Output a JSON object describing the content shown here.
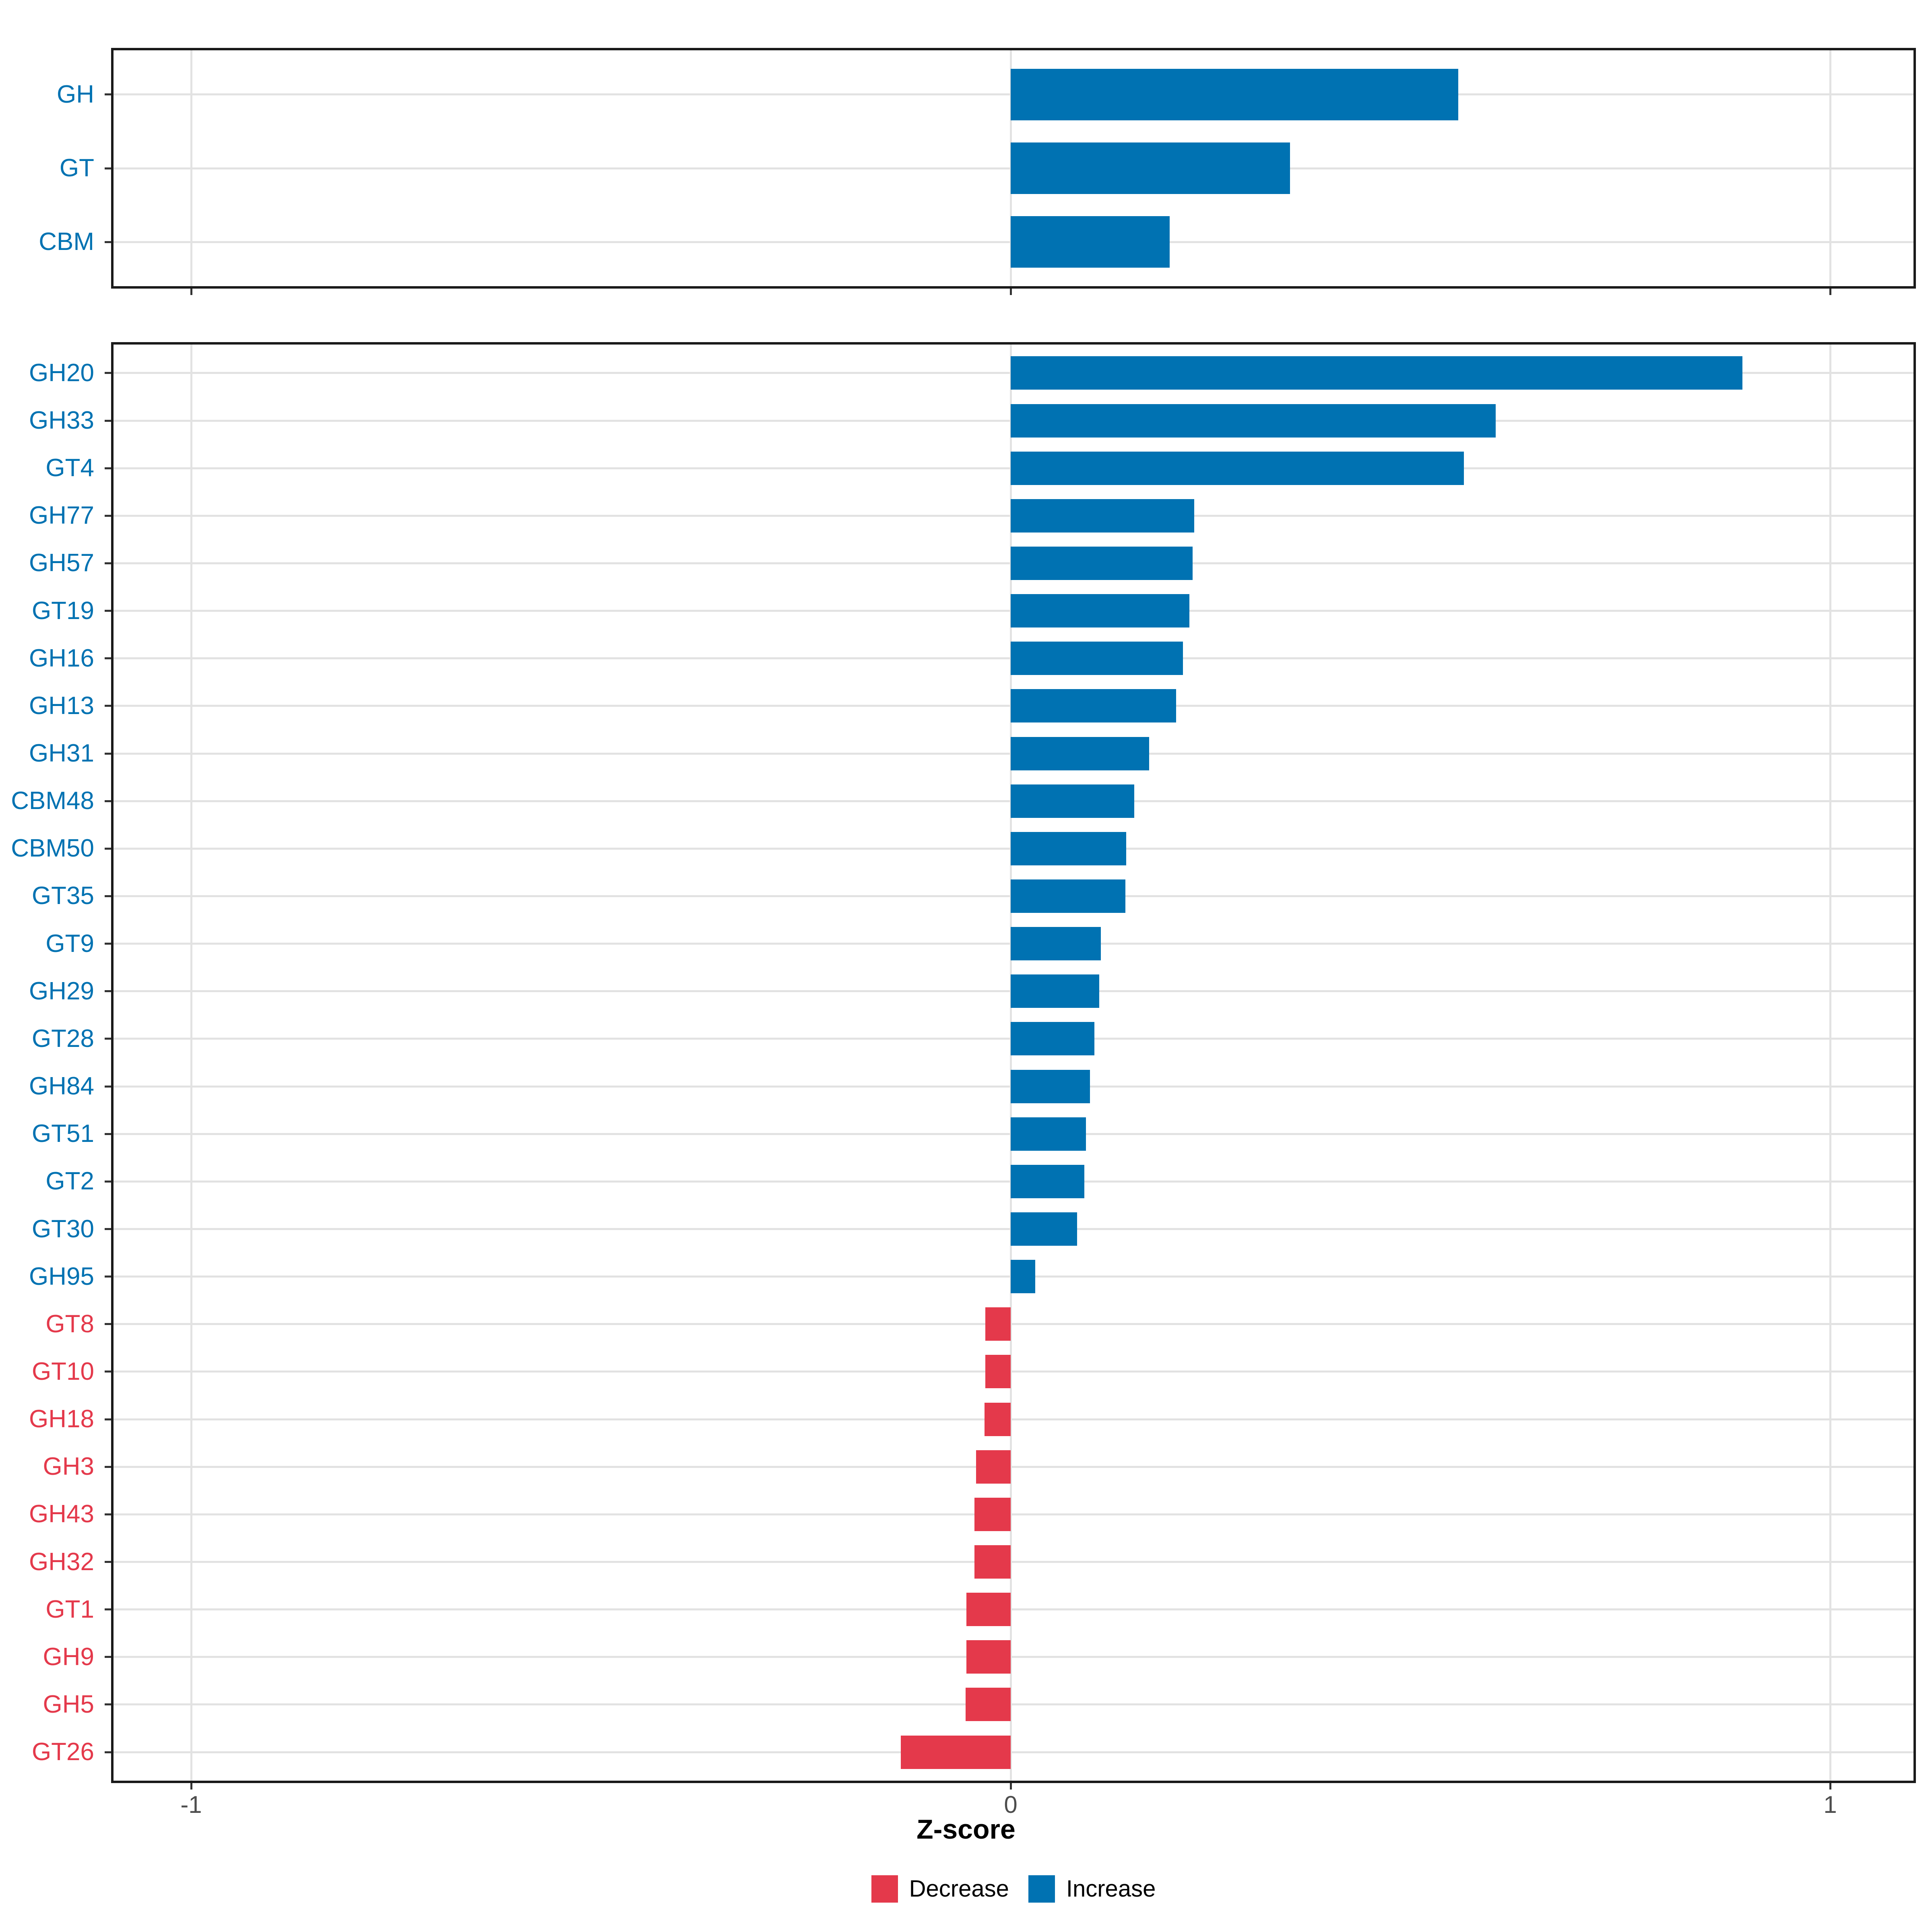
{
  "figure": {
    "x_axis_title": "Z-score",
    "x_tick_labels": [
      "-1",
      "0",
      "1"
    ],
    "legend": {
      "decrease_label": "Decrease",
      "increase_label": "Increase"
    }
  },
  "colors": {
    "increase": "#0072B2",
    "decrease": "#E4394B",
    "grid": "#E2E2E2",
    "panel_border": "#1A1A1A",
    "axis_text": "#4D4D4D"
  },
  "chart_data": {
    "type": "bar",
    "orientation": "horizontal",
    "xlabel": "Z-score",
    "ylabel": "",
    "xlim": [
      -1.15,
      1.1
    ],
    "x_ticks": [
      -1,
      0,
      1
    ],
    "grid": "major-only",
    "legend_position": "bottom",
    "legend_entries": [
      {
        "name": "Decrease",
        "color": "#E4394B"
      },
      {
        "name": "Increase",
        "color": "#0072B2"
      }
    ],
    "panels": [
      {
        "name": "cazyme-classes",
        "categories": [
          "GH",
          "GT",
          "CBM"
        ],
        "values": [
          0.546,
          0.341,
          0.194
        ],
        "directions": [
          "Increase",
          "Increase",
          "Increase"
        ]
      },
      {
        "name": "cazyme-families",
        "categories": [
          "GH20",
          "GH33",
          "GT4",
          "GH77",
          "GH57",
          "GT19",
          "GH16",
          "GH13",
          "GH31",
          "CBM48",
          "CBM50",
          "GT35",
          "GT9",
          "GH29",
          "GT28",
          "GH84",
          "GT51",
          "GT2",
          "GT30",
          "GH95",
          "GT8",
          "GT10",
          "GH18",
          "GH3",
          "GH43",
          "GH32",
          "GT1",
          "GH9",
          "GH5",
          "GT26"
        ],
        "values": [
          0.893,
          0.592,
          0.553,
          0.224,
          0.222,
          0.218,
          0.21,
          0.202,
          0.169,
          0.151,
          0.141,
          0.14,
          0.11,
          0.108,
          0.102,
          0.097,
          0.092,
          0.09,
          0.081,
          0.03,
          -0.031,
          -0.031,
          -0.032,
          -0.042,
          -0.044,
          -0.044,
          -0.054,
          -0.054,
          -0.055,
          -0.134
        ],
        "directions": [
          "Increase",
          "Increase",
          "Increase",
          "Increase",
          "Increase",
          "Increase",
          "Increase",
          "Increase",
          "Increase",
          "Increase",
          "Increase",
          "Increase",
          "Increase",
          "Increase",
          "Increase",
          "Increase",
          "Increase",
          "Increase",
          "Increase",
          "Increase",
          "Decrease",
          "Decrease",
          "Decrease",
          "Decrease",
          "Decrease",
          "Decrease",
          "Decrease",
          "Decrease",
          "Decrease",
          "Decrease"
        ]
      }
    ]
  }
}
